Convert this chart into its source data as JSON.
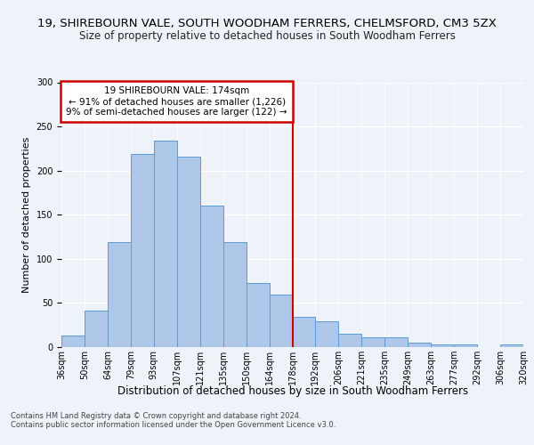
{
  "title": "19, SHIREBOURN VALE, SOUTH WOODHAM FERRERS, CHELMSFORD, CM3 5ZX",
  "subtitle": "Size of property relative to detached houses in South Woodham Ferrers",
  "xlabel": "Distribution of detached houses by size in South Woodham Ferrers",
  "ylabel": "Number of detached properties",
  "categories": [
    "36sqm",
    "50sqm",
    "64sqm",
    "79sqm",
    "93sqm",
    "107sqm",
    "121sqm",
    "135sqm",
    "150sqm",
    "164sqm",
    "178sqm",
    "192sqm",
    "206sqm",
    "221sqm",
    "235sqm",
    "249sqm",
    "263sqm",
    "277sqm",
    "292sqm",
    "306sqm",
    "320sqm"
  ],
  "values": [
    13,
    41,
    119,
    219,
    234,
    216,
    160,
    119,
    73,
    59,
    34,
    29,
    15,
    11,
    11,
    5,
    3,
    3,
    0,
    3
  ],
  "bar_color": "#aec6e8",
  "bar_edge_color": "#5b9bd5",
  "vline_color": "#cc0000",
  "annotation_text": "19 SHIREBOURN VALE: 174sqm\n← 91% of detached houses are smaller (1,226)\n9% of semi-detached houses are larger (122) →",
  "annotation_box_color": "#ffffff",
  "annotation_box_edge": "#cc0000",
  "footer": "Contains HM Land Registry data © Crown copyright and database right 2024.\nContains public sector information licensed under the Open Government Licence v3.0.",
  "bg_color": "#eef2f9",
  "plot_bg_color": "#eef2f9",
  "ylim": [
    0,
    300
  ],
  "yticks": [
    0,
    50,
    100,
    150,
    200,
    250,
    300
  ],
  "title_fontsize": 9.5,
  "subtitle_fontsize": 8.5,
  "xlabel_fontsize": 8.5,
  "ylabel_fontsize": 8,
  "tick_fontsize": 7,
  "footer_fontsize": 6,
  "annotation_fontsize": 7.5
}
